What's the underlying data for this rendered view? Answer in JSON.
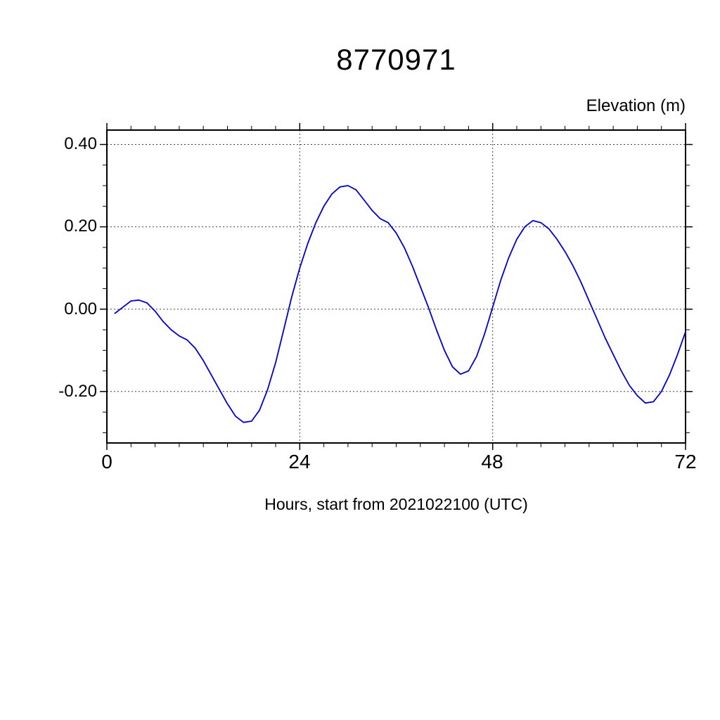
{
  "chart_data": {
    "type": "line",
    "title": "8770971",
    "ylabel": "Elevation (m)",
    "xlabel": "Hours, start from 2021022100 (UTC)",
    "xlim": [
      0,
      72
    ],
    "ylim": [
      -0.325,
      0.435
    ],
    "grid": true,
    "x_major_ticks": [
      0,
      24,
      48,
      72
    ],
    "x_tick_labels": [
      "0",
      "24",
      "48",
      "72"
    ],
    "x_minor_step": 3,
    "x_gridlines": [
      24,
      48
    ],
    "y_major_ticks": [
      0.4,
      0.2,
      0.0,
      -0.2
    ],
    "y_tick_labels": [
      "0.40",
      "0.20",
      "0.00",
      "-0.20"
    ],
    "y_minor_step": 0.05,
    "colors": {
      "line": "#0000cc",
      "axis": "#000000",
      "grid": "#444444",
      "background": "#ffffff"
    },
    "series": [
      {
        "name": "Elevation",
        "color": "#0000cc",
        "x": [
          1,
          2,
          3,
          4,
          5,
          6,
          7,
          8,
          9,
          10,
          11,
          12,
          13,
          14,
          15,
          16,
          17,
          18,
          19,
          20,
          21,
          22,
          23,
          24,
          25,
          26,
          27,
          28,
          29,
          30,
          31,
          32,
          33,
          34,
          35,
          36,
          37,
          38,
          39,
          40,
          41,
          42,
          43,
          44,
          45,
          46,
          47,
          48,
          49,
          50,
          51,
          52,
          53,
          54,
          55,
          56,
          57,
          58,
          59,
          60,
          61,
          62,
          63,
          64,
          65,
          66,
          67,
          68,
          69,
          70,
          71,
          72
        ],
        "y": [
          -0.01,
          0.005,
          0.02,
          0.022,
          0.015,
          -0.005,
          -0.03,
          -0.05,
          -0.065,
          -0.075,
          -0.095,
          -0.125,
          -0.16,
          -0.195,
          -0.23,
          -0.26,
          -0.275,
          -0.272,
          -0.245,
          -0.195,
          -0.13,
          -0.05,
          0.03,
          0.1,
          0.16,
          0.21,
          0.25,
          0.28,
          0.297,
          0.3,
          0.29,
          0.265,
          0.24,
          0.22,
          0.21,
          0.185,
          0.15,
          0.105,
          0.055,
          0.005,
          -0.05,
          -0.1,
          -0.14,
          -0.158,
          -0.15,
          -0.115,
          -0.06,
          0.005,
          0.07,
          0.125,
          0.17,
          0.2,
          0.215,
          0.21,
          0.195,
          0.17,
          0.14,
          0.105,
          0.065,
          0.02,
          -0.025,
          -0.07,
          -0.11,
          -0.15,
          -0.185,
          -0.21,
          -0.228,
          -0.225,
          -0.2,
          -0.16,
          -0.11,
          -0.055
        ]
      }
    ]
  }
}
